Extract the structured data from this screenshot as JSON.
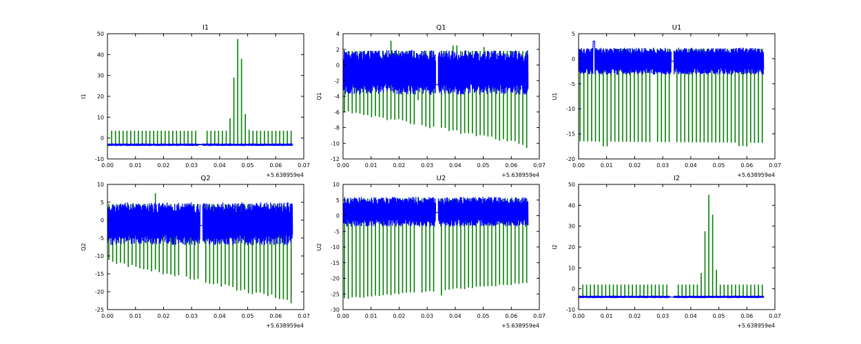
{
  "chart_data": [
    {
      "type": "line",
      "title": "I1",
      "ylabel": "I1",
      "xlabel": "",
      "x_offset_label": "+5.638959e4",
      "xlim": [
        0.0,
        0.07
      ],
      "ylim": [
        -10,
        50
      ],
      "xticks": [
        "0.00",
        "0.01",
        "0.02",
        "0.03",
        "0.04",
        "0.05",
        "0.06",
        "0.07"
      ],
      "yticks": [
        "-10",
        "0",
        "10",
        "20",
        "30",
        "40",
        "50"
      ],
      "colors": {
        "green": "#008000",
        "blue": "#0000ff"
      },
      "series": [
        {
          "name": "green",
          "kind": "spikes",
          "baseline": -3,
          "x_start": 0.0015,
          "x_end": 0.0655,
          "n_spikes": 48,
          "gap": [
            0.0325,
            0.0345
          ],
          "up_default": 3.5,
          "down_default": -3,
          "special": [
            {
              "x": 0.044,
              "up": 9.5
            },
            {
              "x": 0.0455,
              "up": 29
            },
            {
              "x": 0.0468,
              "up": 47.5
            },
            {
              "x": 0.0481,
              "up": 38
            },
            {
              "x": 0.0494,
              "up": 11.5
            },
            {
              "x": 0.051,
              "up": 4
            },
            {
              "x": 0.052,
              "up": 3.5
            }
          ]
        },
        {
          "name": "blue",
          "kind": "band",
          "x_start": 0.0,
          "x_end": 0.066,
          "gap": [
            0.0325,
            0.034
          ],
          "low": -3.8,
          "high": -2.6,
          "bridge_y": -3.2
        }
      ]
    },
    {
      "type": "line",
      "title": "Q1",
      "ylabel": "Q1",
      "xlabel": "",
      "x_offset_label": "+5.638959e4",
      "xlim": [
        0.0,
        0.07
      ],
      "ylim": [
        -12,
        4
      ],
      "xticks": [
        "0.00",
        "0.01",
        "0.02",
        "0.03",
        "0.04",
        "0.05",
        "0.06",
        "0.07"
      ],
      "yticks": [
        "-12",
        "-10",
        "-8",
        "-6",
        "-4",
        "-2",
        "0",
        "2",
        "4"
      ],
      "colors": {
        "green": "#008000",
        "blue": "#0000ff"
      },
      "series": [
        {
          "name": "green",
          "kind": "spikes",
          "x_start": 0.0005,
          "x_end": 0.0655,
          "n_spikes": 48,
          "gap": [
            0.0325,
            0.0345
          ],
          "up_default": 1.8,
          "down_start": -5.8,
          "down_end": -10.2,
          "special": [
            {
              "x": 0.017,
              "up": 3.1
            },
            {
              "x": 0.0265,
              "up": 1.2,
              "down": -4.4
            },
            {
              "x": 0.0272,
              "up": 1.0,
              "down": -4.5
            },
            {
              "x": 0.04,
              "up": 2.5
            },
            {
              "x": 0.05,
              "up": 2.3
            },
            {
              "x": 0.065,
              "down": -10.6
            }
          ]
        },
        {
          "name": "blue",
          "kind": "band",
          "x_start": 0.0,
          "x_end": 0.066,
          "gap": [
            0.033,
            0.034
          ],
          "low": -3.8,
          "high": 1.9,
          "bridge_y": -2.5
        }
      ]
    },
    {
      "type": "line",
      "title": "U1",
      "ylabel": "U1",
      "xlabel": "",
      "x_offset_label": "+5.638959e4",
      "xlim": [
        0.0,
        0.07
      ],
      "ylim": [
        -20,
        5
      ],
      "xticks": [
        "0.00",
        "0.01",
        "0.02",
        "0.03",
        "0.04",
        "0.05",
        "0.06",
        "0.07"
      ],
      "yticks": [
        "-20",
        "-15",
        "-10",
        "-5",
        "0",
        "5"
      ],
      "colors": {
        "green": "#008000",
        "blue": "#0000ff"
      },
      "series": [
        {
          "name": "green",
          "kind": "spikes",
          "x_start": 0.0005,
          "x_end": 0.0655,
          "n_spikes": 48,
          "gap": [
            0.0325,
            0.0345
          ],
          "up_default": 2.0,
          "down_start": -16.5,
          "down_end": -16.8,
          "special": [
            {
              "x": 0.0095,
              "down": -17.5
            },
            {
              "x": 0.027,
              "up": 2.2,
              "down": -3.0
            },
            {
              "x": 0.058,
              "down": -17.4
            },
            {
              "x": 0.0605,
              "down": -17.5
            }
          ]
        },
        {
          "name": "blue",
          "kind": "band",
          "x_start": 0.0,
          "x_end": 0.066,
          "gap": [
            0.033,
            0.034
          ],
          "low": -3.2,
          "high": 2.2,
          "bridge_y": -0.5,
          "extra_peak": {
            "x": 0.0055,
            "y": 3.5
          }
        }
      ]
    },
    {
      "type": "line",
      "title": "Q2",
      "ylabel": "Q2",
      "xlabel": "",
      "x_offset_label": "+5.638959e4",
      "xlim": [
        0.0,
        0.07
      ],
      "ylim": [
        -25,
        10
      ],
      "xticks": [
        "0.00",
        "0.01",
        "0.02",
        "0.03",
        "0.04",
        "0.05",
        "0.06",
        "0.07"
      ],
      "yticks": [
        "-25",
        "-20",
        "-15",
        "-10",
        "-5",
        "0",
        "5",
        "10"
      ],
      "colors": {
        "green": "#008000",
        "blue": "#0000ff"
      },
      "series": [
        {
          "name": "green",
          "kind": "spikes",
          "x_start": 0.0005,
          "x_end": 0.0655,
          "n_spikes": 48,
          "gap": [
            0.0325,
            0.0345
          ],
          "up_default": 4.5,
          "down_start": -11.5,
          "down_end": -22.5,
          "special": [
            {
              "x": 0.017,
              "up": 7.5
            },
            {
              "x": 0.0265,
              "up": 3.0,
              "down": -7.0
            },
            {
              "x": 0.0272,
              "up": 2.5,
              "down": -6.5
            },
            {
              "x": 0.065,
              "down": -23.2
            }
          ]
        },
        {
          "name": "blue",
          "kind": "band",
          "x_start": 0.0,
          "x_end": 0.066,
          "gap": [
            0.033,
            0.034
          ],
          "low": -7.0,
          "high": 5.0,
          "bridge_y": -1.5
        }
      ]
    },
    {
      "type": "line",
      "title": "U2",
      "ylabel": "U2",
      "xlabel": "",
      "x_offset_label": "+5.638959e4",
      "xlim": [
        0.0,
        0.07
      ],
      "ylim": [
        -30,
        10
      ],
      "xticks": [
        "0.00",
        "0.01",
        "0.02",
        "0.03",
        "0.04",
        "0.05",
        "0.06",
        "0.07"
      ],
      "yticks": [
        "-30",
        "-25",
        "-20",
        "-15",
        "-10",
        "-5",
        "0",
        "5",
        "10"
      ],
      "colors": {
        "green": "#008000",
        "blue": "#0000ff"
      },
      "series": [
        {
          "name": "green",
          "kind": "spikes",
          "x_start": 0.0005,
          "x_end": 0.0655,
          "n_spikes": 48,
          "gap": [
            0.0325,
            0.0345
          ],
          "up_default": 5.5,
          "down_start": -26.5,
          "down_end": -21.5,
          "special": [
            {
              "x": 0.027,
              "up": 6.0,
              "down": -3.0
            },
            {
              "x": 0.035,
              "down": -25.5
            }
          ]
        },
        {
          "name": "blue",
          "kind": "band",
          "x_start": 0.0,
          "x_end": 0.066,
          "gap": [
            0.033,
            0.034
          ],
          "low": -3.5,
          "high": 6.0,
          "bridge_y": 1.0
        }
      ]
    },
    {
      "type": "line",
      "title": "I2",
      "ylabel": "I2",
      "xlabel": "",
      "x_offset_label": "+5.638959e4",
      "xlim": [
        0.0,
        0.07
      ],
      "ylim": [
        -10,
        50
      ],
      "xticks": [
        "0.00",
        "0.01",
        "0.02",
        "0.03",
        "0.04",
        "0.05",
        "0.06",
        "0.07"
      ],
      "yticks": [
        "-10",
        "0",
        "10",
        "20",
        "30",
        "40",
        "50"
      ],
      "colors": {
        "green": "#008000",
        "blue": "#0000ff"
      },
      "series": [
        {
          "name": "green",
          "kind": "spikes",
          "baseline": -4,
          "x_start": 0.0015,
          "x_end": 0.0655,
          "n_spikes": 48,
          "gap": [
            0.0325,
            0.0345
          ],
          "up_default": 2,
          "down_default": -4,
          "special": [
            {
              "x": 0.044,
              "up": 7.5
            },
            {
              "x": 0.0455,
              "up": 27.5
            },
            {
              "x": 0.0468,
              "up": 45
            },
            {
              "x": 0.0481,
              "up": 35.5
            },
            {
              "x": 0.0494,
              "up": 9
            },
            {
              "x": 0.051,
              "up": 2.0
            }
          ]
        },
        {
          "name": "blue",
          "kind": "band",
          "x_start": 0.0,
          "x_end": 0.066,
          "gap": [
            0.0325,
            0.034
          ],
          "low": -4.5,
          "high": -3.3,
          "bridge_y": -4.0
        }
      ]
    }
  ]
}
